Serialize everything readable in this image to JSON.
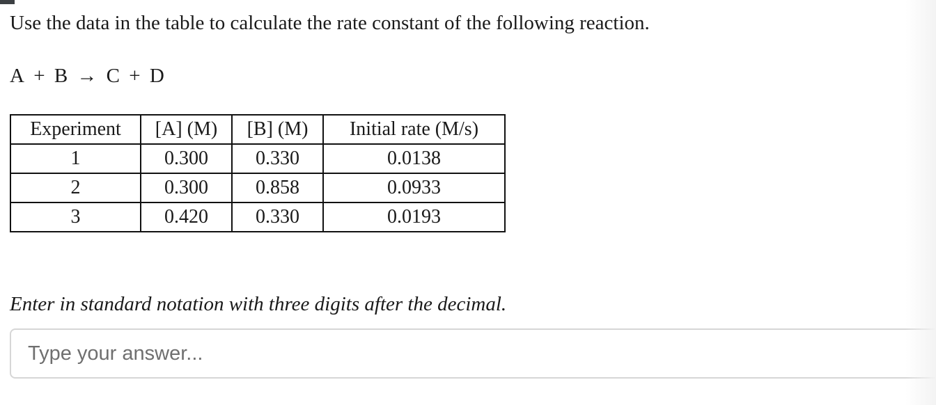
{
  "question": {
    "prompt": "Use the data in the table to calculate the rate constant of the following reaction.",
    "reaction": {
      "reactant_a": "A",
      "plus_1": "+",
      "reactant_b": "B",
      "arrow": "→",
      "product_c": "C",
      "plus_2": "+",
      "product_d": "D"
    }
  },
  "table": {
    "headers": [
      "Experiment",
      "[A] (M)",
      "[B] (M)",
      "Initial rate (M/s)"
    ],
    "rows": [
      [
        "1",
        "0.300",
        "0.330",
        "0.0138"
      ],
      [
        "2",
        "0.300",
        "0.858",
        "0.0933"
      ],
      [
        "3",
        "0.420",
        "0.330",
        "0.0193"
      ]
    ]
  },
  "instruction": "Enter in standard notation with three digits after the decimal.",
  "answer_field": {
    "value": "",
    "placeholder": "Type your answer..."
  }
}
